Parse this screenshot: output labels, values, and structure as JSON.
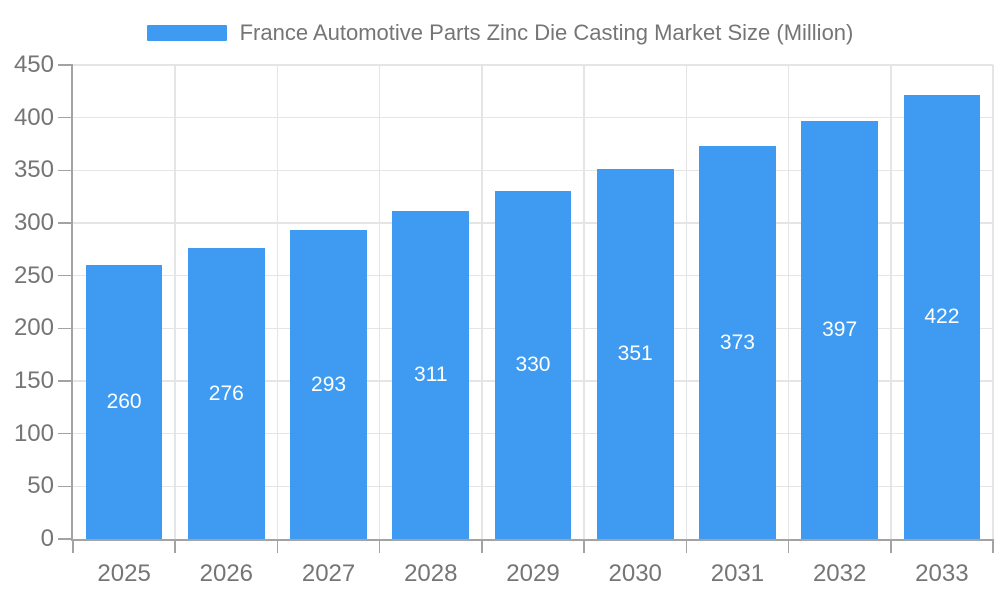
{
  "chart_data": {
    "type": "bar",
    "title": "France Automotive Parts Zinc Die Casting Market Size (Million)",
    "categories": [
      "2025",
      "2026",
      "2027",
      "2028",
      "2029",
      "2030",
      "2031",
      "2032",
      "2033"
    ],
    "values": [
      260,
      276,
      293,
      311,
      330,
      351,
      373,
      397,
      422
    ],
    "series_name": "France Automotive Parts Zinc Die Casting Market Size (Million)",
    "xlabel": "",
    "ylabel": "",
    "ylim": [
      0,
      450
    ],
    "ytick_step": 50,
    "ytick_labels": [
      "0",
      "50",
      "100",
      "150",
      "200",
      "250",
      "300",
      "350",
      "400",
      "450"
    ],
    "grid": true,
    "legend_position": "top",
    "colors": {
      "bar": "#3E9BF1",
      "bar_value_text": "#FFFFFF",
      "axis_text": "#757575",
      "axis_line": "#A3A3A3",
      "gridline": "#E5E5E5",
      "background": "#FFFFFF"
    }
  }
}
